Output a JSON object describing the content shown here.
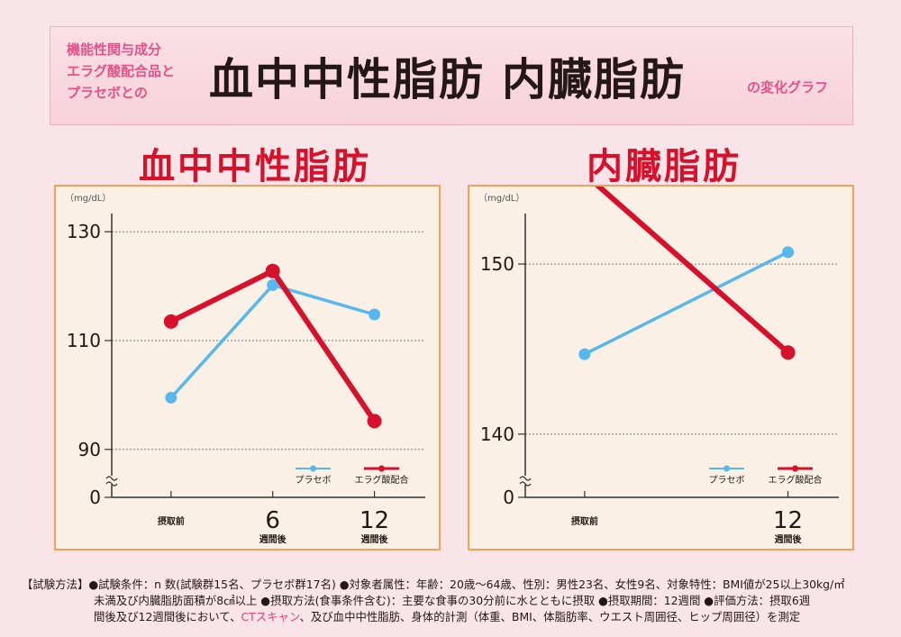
{
  "header": {
    "lines": [
      "機能性関与成分",
      "エラグ酸配合品と",
      "プラセボとの"
    ],
    "main": "血中中性脂肪 内臓脂肪",
    "suffix": "の変化グラフ"
  },
  "colors": {
    "placebo": "#56b8ec",
    "ellagic": "#d7102b"
  },
  "chart_data": [
    {
      "type": "line",
      "title": "血中中性脂肪",
      "unit": "（mg/dL）",
      "y_axis_break": true,
      "yticks": [
        0,
        90,
        110,
        130
      ],
      "ylim": [
        85,
        135
      ],
      "grid": true,
      "x_ticks": [
        {
          "value": 0,
          "label": "摂取前",
          "big": "",
          "sub": ""
        },
        {
          "value": 6,
          "label": "",
          "big": "6",
          "sub": "週間後"
        },
        {
          "value": 12,
          "label": "",
          "big": "12",
          "sub": "週間後"
        }
      ],
      "xlim": [
        -3.5,
        15
      ],
      "series": [
        {
          "name": "プラセボ",
          "x": [
            0,
            6,
            12
          ],
          "y": [
            99.5,
            120.2,
            114.8
          ]
        },
        {
          "name": "エラグ酸配合",
          "x": [
            0,
            6,
            12
          ],
          "y": [
            113.5,
            122.8,
            95.2
          ]
        }
      ],
      "legend_position": "bottom-right"
    },
    {
      "type": "line",
      "title": "内臓脂肪",
      "unit": "（mg/dL）",
      "y_axis_break": true,
      "yticks": [
        0,
        140,
        150
      ],
      "ylim": [
        137.5,
        153.5
      ],
      "grid": true,
      "x_ticks": [
        {
          "value": 0,
          "label": "摂取前",
          "big": "",
          "sub": ""
        },
        {
          "value": 12,
          "label": "",
          "big": "12",
          "sub": "週間後"
        }
      ],
      "xlim": [
        -3.5,
        15
      ],
      "series": [
        {
          "name": "プラセボ",
          "x": [
            0,
            12
          ],
          "y": [
            144.7,
            150.7
          ]
        },
        {
          "name": "エラグ酸配合",
          "x": [
            0,
            12
          ],
          "y": [
            155.3,
            144.8
          ]
        }
      ],
      "legend_position": "bottom-right"
    }
  ],
  "footer": {
    "line1": "【試験方法】●試験条件：n 数(試験群15名、プラセボ群17名) ●対象者属性：年齢：20歳～64歳、性別：男性23名、女性9名、対象特性：BMI値が25以上30kg/㎡",
    "line2": "未満及び内臓脂肪面積が8㎠以上 ●摂取方法(食事条件含む)：主要な食事の30分前に水とともに摂取 ●摂取期間：12週間 ●評価方法：摂取6週",
    "line3_pre": "間後及び12週間後において、",
    "line3_hl": "CTスキャン",
    "line3_post": "、及び血中中性脂肪、身体的計測（体重、BMI、体脂肪率、ウエスト周囲径、ヒップ周囲径）を測定"
  }
}
